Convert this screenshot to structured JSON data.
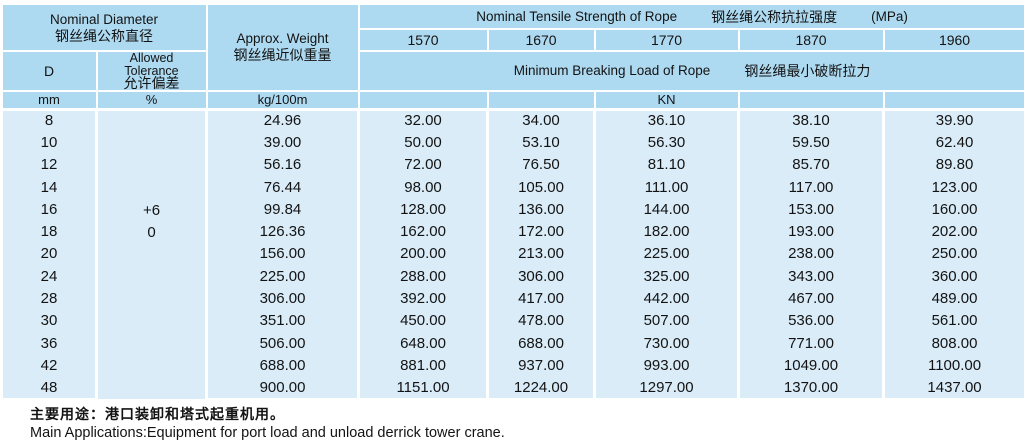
{
  "colors": {
    "header_blue": "#aedaf1",
    "body_blue": "#d9ecf8",
    "grid_white": "#ffffff",
    "text": "#131313"
  },
  "table": {
    "header": {
      "nominal_diameter_en": "Nominal Diameter",
      "nominal_diameter_zh": "钢丝绳公称直径",
      "approx_weight_en": "Approx. Weight",
      "approx_weight_zh": "钢丝绳近似重量",
      "tensile_title_en": "Nominal Tensile Strength of Rope",
      "tensile_title_zh": "钢丝绳公称抗拉强度",
      "tensile_unit": "(MPa)",
      "d_label": "D",
      "tolerance_line1": "Allowed",
      "tolerance_line2": "Tolerance",
      "tolerance_zh": "允许偏差",
      "breaking_title_en": "Minimum Breaking Load of Rope",
      "breaking_title_zh": "钢丝绳最小破断拉力",
      "unit_mm": "mm",
      "unit_percent": "%",
      "unit_weight": "kg/100m",
      "unit_kn": "KN"
    },
    "strength_grades": [
      "1570",
      "1670",
      "1770",
      "1870",
      "1960"
    ],
    "tolerance_values": [
      "+6",
      "0"
    ],
    "rows": [
      {
        "d": "8",
        "weight": "24.96",
        "loads": [
          "32.00",
          "34.00",
          "36.10",
          "38.10",
          "39.90"
        ]
      },
      {
        "d": "10",
        "weight": "39.00",
        "loads": [
          "50.00",
          "53.10",
          "56.30",
          "59.50",
          "62.40"
        ]
      },
      {
        "d": "12",
        "weight": "56.16",
        "loads": [
          "72.00",
          "76.50",
          "81.10",
          "85.70",
          "89.80"
        ]
      },
      {
        "d": "14",
        "weight": "76.44",
        "loads": [
          "98.00",
          "105.00",
          "111.00",
          "117.00",
          "123.00"
        ]
      },
      {
        "d": "16",
        "weight": "99.84",
        "loads": [
          "128.00",
          "136.00",
          "144.00",
          "153.00",
          "160.00"
        ]
      },
      {
        "d": "18",
        "weight": "126.36",
        "loads": [
          "162.00",
          "172.00",
          "182.00",
          "193.00",
          "202.00"
        ]
      },
      {
        "d": "20",
        "weight": "156.00",
        "loads": [
          "200.00",
          "213.00",
          "225.00",
          "238.00",
          "250.00"
        ]
      },
      {
        "d": "24",
        "weight": "225.00",
        "loads": [
          "288.00",
          "306.00",
          "325.00",
          "343.00",
          "360.00"
        ]
      },
      {
        "d": "28",
        "weight": "306.00",
        "loads": [
          "392.00",
          "417.00",
          "442.00",
          "467.00",
          "489.00"
        ]
      },
      {
        "d": "30",
        "weight": "351.00",
        "loads": [
          "450.00",
          "478.00",
          "507.00",
          "536.00",
          "561.00"
        ]
      },
      {
        "d": "36",
        "weight": "506.00",
        "loads": [
          "648.00",
          "688.00",
          "730.00",
          "771.00",
          "808.00"
        ]
      },
      {
        "d": "42",
        "weight": "688.00",
        "loads": [
          "881.00",
          "937.00",
          "993.00",
          "1049.00",
          "1100.00"
        ]
      },
      {
        "d": "48",
        "weight": "900.00",
        "loads": [
          "1151.00",
          "1224.00",
          "1297.00",
          "1370.00",
          "1437.00"
        ]
      }
    ]
  },
  "footer": {
    "usage_zh": "主要用途：港口装卸和塔式起重机用。",
    "usage_en": "Main Applications:Equipment for port load and unload derrick tower crane."
  }
}
